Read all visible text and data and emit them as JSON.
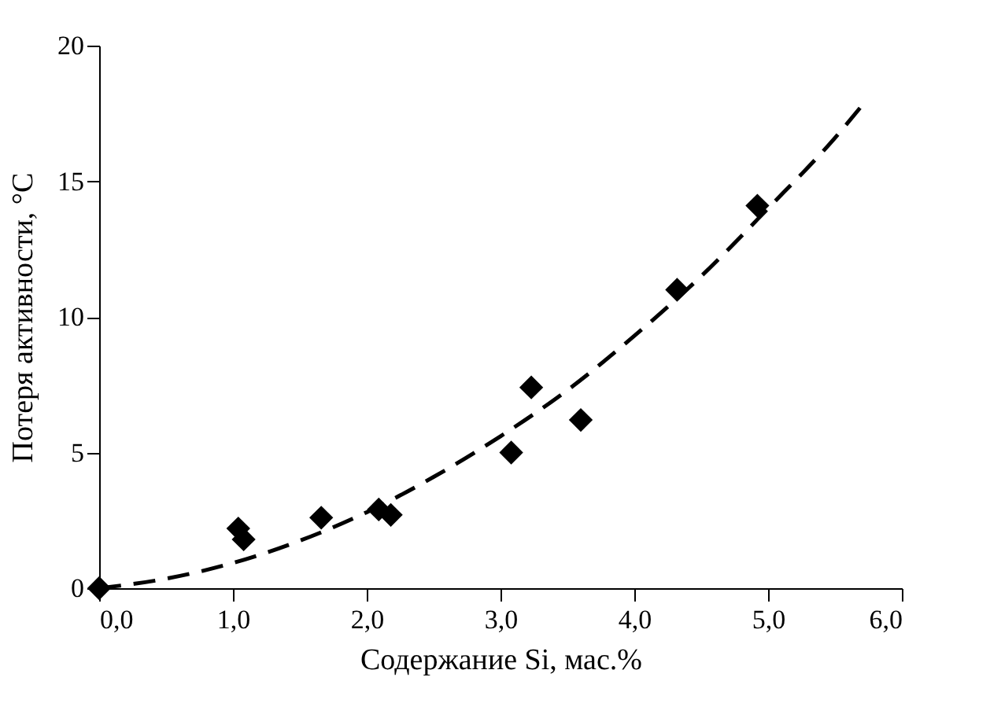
{
  "chart_data": {
    "type": "scatter",
    "xlabel": "Содержание Si, мас.%",
    "ylabel": "Потеря активности, °С",
    "xlim": [
      0,
      6
    ],
    "ylim": [
      0,
      20
    ],
    "xticks": [
      {
        "value": 0,
        "label": "0,0"
      },
      {
        "value": 1,
        "label": "1,0"
      },
      {
        "value": 2,
        "label": "2,0"
      },
      {
        "value": 3,
        "label": "3,0"
      },
      {
        "value": 4,
        "label": "4,0"
      },
      {
        "value": 5,
        "label": "5,0"
      },
      {
        "value": 6,
        "label": "6,0"
      }
    ],
    "yticks": [
      0,
      5,
      10,
      15,
      20
    ],
    "series": [
      {
        "color": "#000000",
        "marker": "diamond",
        "x": [
          0,
          1.04,
          1.08,
          1.66,
          2.09,
          2.18,
          3.08,
          3.23,
          3.6,
          4.32,
          4.92
        ],
        "values": [
          0,
          2.2,
          1.8,
          2.6,
          2.9,
          2.7,
          5.0,
          7.4,
          6.2,
          11.0,
          14.1
        ]
      },
      {
        "type": "line",
        "color": "#000000",
        "line_style": "dashed",
        "marker": "none",
        "x": [
          0,
          0.5,
          1,
          1.5,
          2,
          2.5,
          3,
          3.5,
          4,
          4.5,
          5,
          5.5,
          5.72
        ],
        "values": [
          0,
          0.35,
          0.93,
          1.75,
          2.8,
          4.1,
          5.6,
          7.3,
          9.3,
          11.5,
          14.0,
          16.6,
          17.9
        ]
      }
    ]
  }
}
